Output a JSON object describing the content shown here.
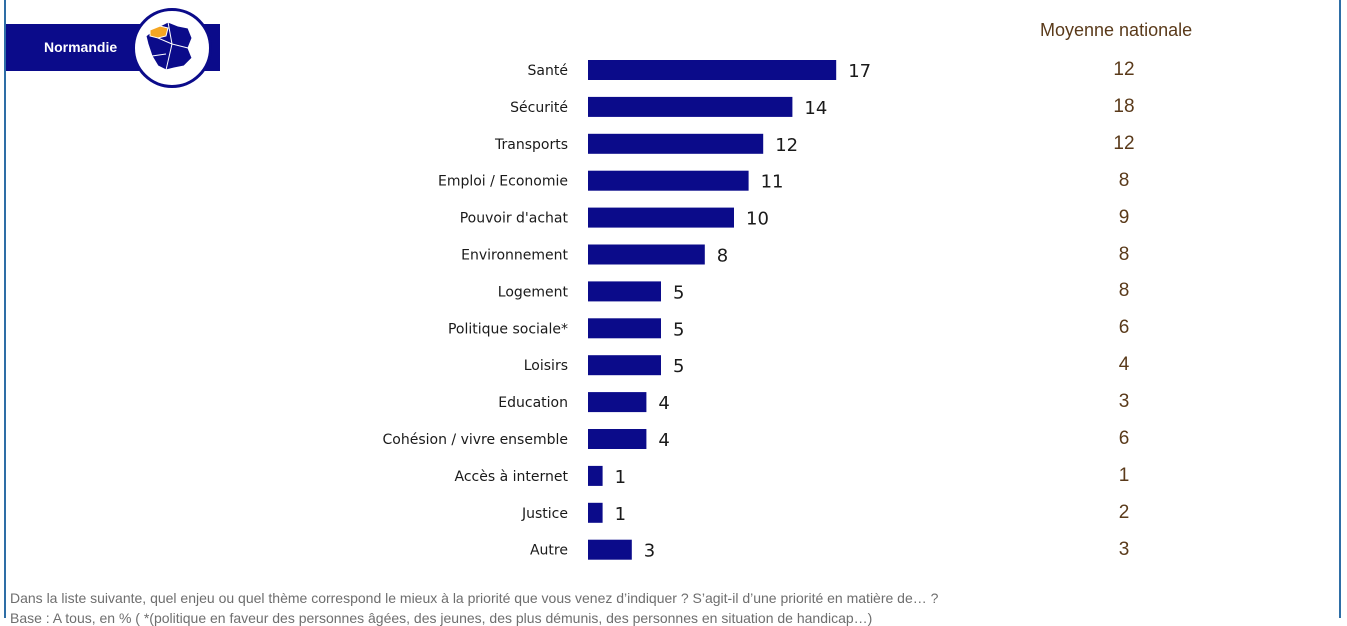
{
  "region": {
    "name": "Normandie",
    "highlight_color": "#f5a623",
    "brand_color": "#0b0b8a"
  },
  "national": {
    "title": "Moyenne nationale"
  },
  "chart_data": {
    "type": "bar",
    "orientation": "horizontal",
    "bar_color": "#0b0b8a",
    "categories": [
      "Santé",
      "Sécurité",
      "Transports",
      "Emploi / Economie",
      "Pouvoir d'achat",
      "Environnement",
      "Logement",
      "Politique sociale*",
      "Loisirs",
      "Education",
      "Cohésion / vivre ensemble",
      "Accès à internet",
      "Justice",
      "Autre"
    ],
    "series": [
      {
        "values": [
          17,
          14,
          12,
          11,
          10,
          8,
          5,
          5,
          5,
          4,
          4,
          1,
          1,
          3
        ]
      }
    ],
    "national_average": [
      12,
      18,
      12,
      8,
      9,
      8,
      8,
      6,
      4,
      3,
      6,
      1,
      2,
      3
    ]
  },
  "footer": {
    "question": "Dans la liste suivante, quel enjeu ou quel thème correspond le mieux à la priorité que vous venez d’indiquer ? S’agit-il d’une priorité en matière de… ?",
    "base": "Base : A tous, en % ( *(politique en faveur des personnes âgées, des jeunes, des plus démunis, des personnes en situation de handicap…)"
  }
}
